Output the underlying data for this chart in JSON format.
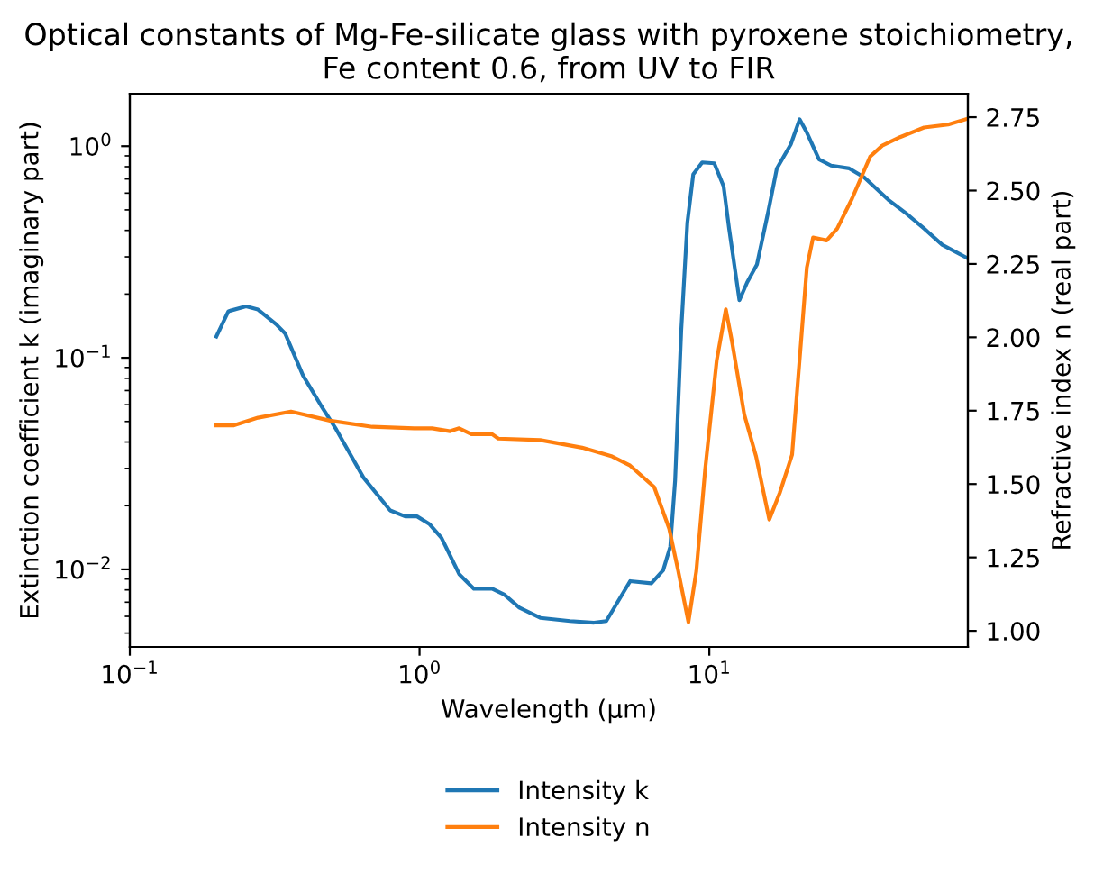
{
  "chart_data": {
    "type": "line",
    "title": "Optical constants of Mg-Fe-silicate glass with pyroxene stoichiometry,\nFe content 0.6, from UV to FIR",
    "xlabel": "Wavelength (μm)",
    "ylabel": "Extinction coefficient k (imaginary part)",
    "y2label": "Refractive index n (real part)",
    "log": "xy",
    "legend": "bottom",
    "grid": false,
    "xlim": [
      0.1,
      78
    ],
    "xticks": [
      {
        "value": 0.1,
        "label": "10$^{−1}$"
      },
      {
        "value": 1,
        "label": "10$^{0}$"
      },
      {
        "value": 10,
        "label": "10$^{1}$"
      }
    ],
    "ylim": [
      0.0043,
      1.77
    ],
    "yticks": [
      {
        "value": 0.01,
        "label": "10$^{−2}$"
      },
      {
        "value": 0.1,
        "label": "10$^{−1}$"
      },
      {
        "value": 1,
        "label": "10$^{0}$"
      }
    ],
    "y2lim": [
      0.945,
      2.83
    ],
    "y2ticks": [
      {
        "value": 1.0,
        "label": "1.00"
      },
      {
        "value": 1.25,
        "label": "1.25"
      },
      {
        "value": 1.5,
        "label": "1.50"
      },
      {
        "value": 1.75,
        "label": "1.75"
      },
      {
        "value": 2.0,
        "label": "2.00"
      },
      {
        "value": 2.25,
        "label": "2.25"
      },
      {
        "value": 2.5,
        "label": "2.50"
      },
      {
        "value": 2.75,
        "label": "2.75"
      }
    ],
    "series": [
      {
        "name": "Intensity k",
        "color": "#1f77b4",
        "x": [
          0.199,
          0.219,
          0.252,
          0.277,
          0.32,
          0.344,
          0.396,
          0.457,
          0.516,
          0.64,
          0.792,
          0.892,
          0.98,
          1.08,
          1.19,
          1.37,
          1.54,
          1.78,
          1.96,
          2.21,
          2.61,
          3.31,
          4.0,
          4.41,
          5.33,
          6.31,
          6.93,
          7.33,
          7.62,
          8.0,
          8.4,
          8.8,
          9.45,
          10.4,
          11.2,
          11.7,
          12.7,
          13.5,
          14.6,
          16.0,
          17.1,
          19.1,
          20.5,
          21.7,
          23.9,
          26.3,
          30.4,
          34.2,
          41.4,
          47.8,
          55.1,
          63.6,
          76.9
        ],
        "values": [
          0.126,
          0.166,
          0.175,
          0.169,
          0.144,
          0.13,
          0.0826,
          0.0595,
          0.0458,
          0.0272,
          0.019,
          0.0178,
          0.0178,
          0.0164,
          0.0141,
          0.0095,
          0.0081,
          0.0081,
          0.0076,
          0.0066,
          0.0059,
          0.0057,
          0.0056,
          0.0057,
          0.0088,
          0.0086,
          0.0099,
          0.0128,
          0.0263,
          0.135,
          0.436,
          0.736,
          0.838,
          0.83,
          0.646,
          0.408,
          0.187,
          0.227,
          0.276,
          0.497,
          0.785,
          1.02,
          1.34,
          1.16,
          0.867,
          0.81,
          0.785,
          0.713,
          0.559,
          0.481,
          0.408,
          0.342,
          0.298
        ]
      },
      {
        "name": "Intensity n",
        "color": "#ff7f0e",
        "axis": "y2",
        "x": [
          0.199,
          0.229,
          0.277,
          0.36,
          0.491,
          0.687,
          0.958,
          1.105,
          1.275,
          1.37,
          1.51,
          1.78,
          1.87,
          2.61,
          3.64,
          4.62,
          5.33,
          6.45,
          7.27,
          7.81,
          8.47,
          9.02,
          9.68,
          10.6,
          11.4,
          12.0,
          13.2,
          14.5,
          16.1,
          17.5,
          19.3,
          20.7,
          21.7,
          22.8,
          25.4,
          27.6,
          31.1,
          35.9,
          39.5,
          45.5,
          55.1,
          66.7,
          78
        ],
        "values": [
          1.7,
          1.7,
          1.726,
          1.747,
          1.716,
          1.695,
          1.69,
          1.69,
          1.68,
          1.69,
          1.67,
          1.67,
          1.655,
          1.65,
          1.624,
          1.594,
          1.563,
          1.49,
          1.348,
          1.204,
          1.03,
          1.204,
          1.552,
          1.92,
          2.095,
          1.98,
          1.737,
          1.594,
          1.379,
          1.47,
          1.6,
          1.98,
          2.238,
          2.34,
          2.33,
          2.37,
          2.473,
          2.616,
          2.653,
          2.682,
          2.715,
          2.725,
          2.745
        ]
      }
    ]
  }
}
